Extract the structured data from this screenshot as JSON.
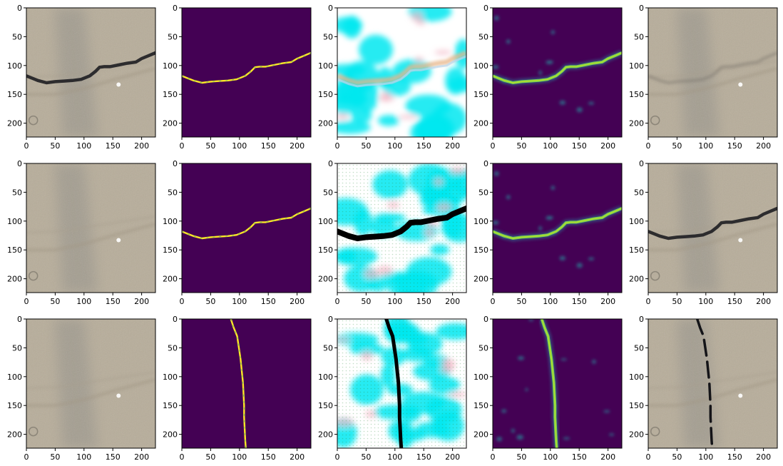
{
  "chart_data": {
    "type": "image-grid",
    "rows": 3,
    "cols": 5,
    "xticks": [
      0,
      50,
      100,
      150,
      200
    ],
    "yticks": [
      0,
      50,
      100,
      150,
      200
    ],
    "xlim": [
      0,
      224
    ],
    "ylim": [
      224,
      0
    ],
    "panels": [
      {
        "row": 0,
        "col": 0,
        "kind": "photo",
        "crack": "dark-horizontal"
      },
      {
        "row": 0,
        "col": 1,
        "kind": "mask",
        "crack": "horizontal"
      },
      {
        "row": 0,
        "col": 2,
        "kind": "saliency",
        "crack": "faint-horizontal"
      },
      {
        "row": 0,
        "col": 3,
        "kind": "heatmap",
        "crack": "horizontal"
      },
      {
        "row": 0,
        "col": 4,
        "kind": "photo",
        "crack": "faint-horizontal"
      },
      {
        "row": 1,
        "col": 0,
        "kind": "photo",
        "crack": "none"
      },
      {
        "row": 1,
        "col": 1,
        "kind": "mask",
        "crack": "horizontal"
      },
      {
        "row": 1,
        "col": 2,
        "kind": "saliency",
        "crack": "dark-horizontal"
      },
      {
        "row": 1,
        "col": 3,
        "kind": "heatmap",
        "crack": "horizontal"
      },
      {
        "row": 1,
        "col": 4,
        "kind": "photo",
        "crack": "dark-horizontal"
      },
      {
        "row": 2,
        "col": 0,
        "kind": "photo",
        "crack": "none"
      },
      {
        "row": 2,
        "col": 1,
        "kind": "mask",
        "crack": "vertical"
      },
      {
        "row": 2,
        "col": 2,
        "kind": "saliency",
        "crack": "dark-vertical"
      },
      {
        "row": 2,
        "col": 3,
        "kind": "heatmap",
        "crack": "vertical"
      },
      {
        "row": 2,
        "col": 4,
        "kind": "photo",
        "crack": "dark-vertical"
      }
    ],
    "crack_paths": {
      "horizontal": [
        [
          0,
          118
        ],
        [
          10,
          122
        ],
        [
          20,
          126
        ],
        [
          35,
          130
        ],
        [
          50,
          128
        ],
        [
          65,
          127
        ],
        [
          80,
          126
        ],
        [
          95,
          124
        ],
        [
          110,
          118
        ],
        [
          120,
          110
        ],
        [
          127,
          103
        ],
        [
          135,
          102
        ],
        [
          145,
          102
        ],
        [
          160,
          99
        ],
        [
          175,
          96
        ],
        [
          190,
          94
        ],
        [
          200,
          88
        ],
        [
          212,
          83
        ],
        [
          224,
          78
        ]
      ],
      "vertical": [
        [
          85,
          0
        ],
        [
          90,
          15
        ],
        [
          96,
          30
        ],
        [
          99,
          50
        ],
        [
          102,
          70
        ],
        [
          104,
          90
        ],
        [
          106,
          110
        ],
        [
          107,
          130
        ],
        [
          108,
          150
        ],
        [
          108,
          170
        ],
        [
          109,
          190
        ],
        [
          110,
          210
        ],
        [
          111,
          224
        ]
      ]
    },
    "colors": {
      "mask_bg": "#440154",
      "mask_line": "#fde725",
      "heat_line": "#6ece58",
      "heat_core": "#b5de2b",
      "heat_blob": "#2a788e",
      "saliency_cyan": "#00e8f0",
      "photo_base": "#b7ad9a"
    }
  }
}
